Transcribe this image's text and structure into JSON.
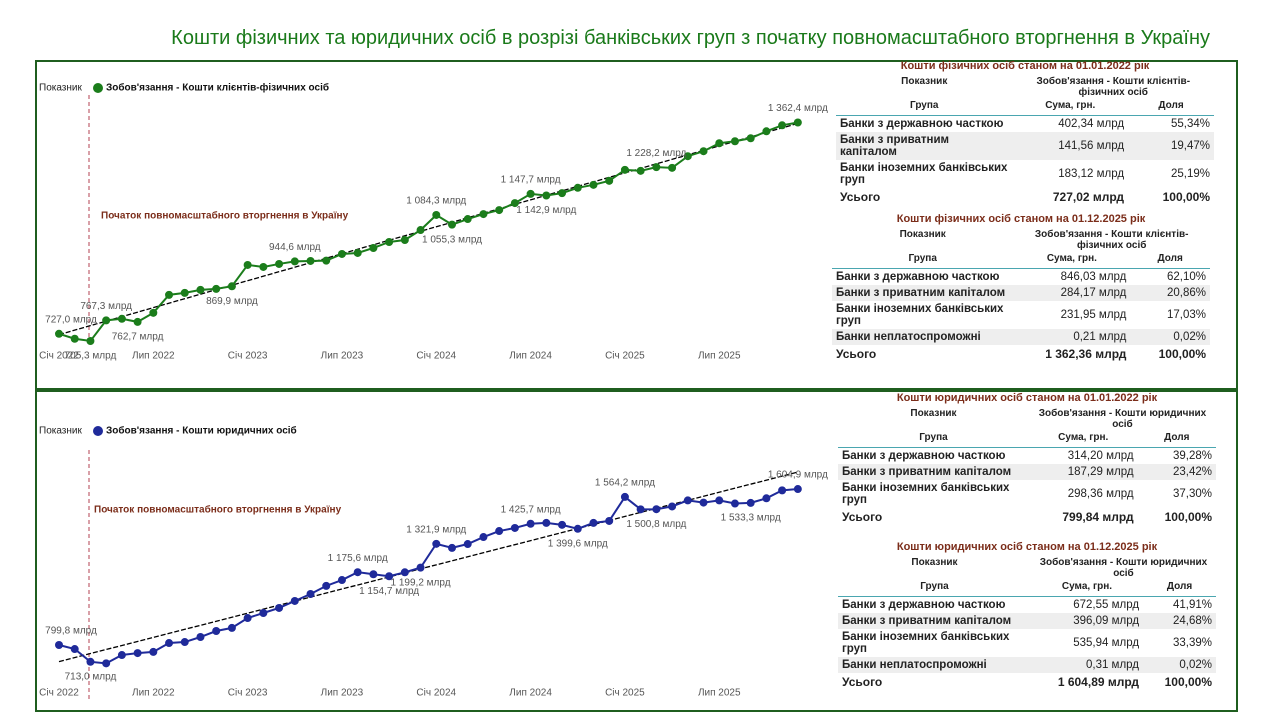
{
  "title": "Кошти фізичних та юридичних осіб в розрізі банківських груп з початку повномасштабного вторгнення в Україну",
  "chart_data": [
    {
      "type": "line",
      "legend_title": "Показник",
      "annotation": "Початок повномасштабного вторгнення в Україну",
      "categories": [
        "Січ 2022",
        null,
        null,
        null,
        null,
        null,
        "Лип 2022",
        null,
        null,
        null,
        null,
        null,
        "Січ 2023",
        null,
        null,
        null,
        null,
        null,
        "Лип 2023",
        null,
        null,
        null,
        null,
        null,
        "Січ 2024",
        null,
        null,
        null,
        null,
        null,
        "Лип 2024",
        null,
        null,
        null,
        null,
        null,
        "Січ 2025",
        null,
        null,
        null,
        null,
        null,
        "Лип 2025",
        null,
        null,
        null,
        null,
        null
      ],
      "ylim": [
        600,
        1400
      ],
      "series": [
        {
          "name": "Зобов'язання - Кошти клієнтів-фізичних осіб",
          "color": "#1b7d1b",
          "values": [
            727.0,
            712,
            705.3,
            767.3,
            772,
            762.7,
            790,
            844,
            850,
            859,
            862,
            869.9,
            934,
            928,
            937,
            944.6,
            946,
            947,
            967,
            970,
            985,
            1003,
            1009,
            1039,
            1084.3,
            1055.3,
            1072,
            1087,
            1099,
            1120,
            1147.7,
            1142.9,
            1150,
            1166,
            1175,
            1187,
            1220,
            1217,
            1228.2,
            1226,
            1261,
            1276,
            1300,
            1306,
            1315,
            1336,
            1354,
            1362.4
          ],
          "value_labels": [
            "727,0 млрд",
            null,
            "705,3 млрд",
            "767,3 млрд",
            null,
            "762,7 млрд",
            null,
            null,
            null,
            null,
            null,
            "869,9 млрд",
            null,
            null,
            null,
            "944,6 млрд",
            null,
            null,
            null,
            null,
            null,
            null,
            null,
            null,
            "1 084,3 млрд",
            "1 055,3 млрд",
            null,
            null,
            null,
            null,
            "1 147,7 млрд",
            "1 142,9 млрд",
            null,
            null,
            null,
            null,
            null,
            null,
            "1 228,2 млрд",
            null,
            null,
            null,
            null,
            null,
            null,
            null,
            null,
            "1 362,4 млрд"
          ]
        }
      ]
    },
    {
      "type": "line",
      "legend_title": "Показник",
      "annotation": "Початок повномасштабного вторгнення в Україну",
      "categories": [
        "Січ 2022",
        null,
        null,
        null,
        null,
        null,
        "Лип 2022",
        null,
        null,
        null,
        null,
        null,
        "Січ 2023",
        null,
        null,
        null,
        null,
        null,
        "Лип 2023",
        null,
        null,
        null,
        null,
        null,
        "Січ 2024",
        null,
        null,
        null,
        null,
        null,
        "Лип 2024",
        null,
        null,
        null,
        null,
        null,
        "Січ 2025",
        null,
        null,
        null,
        null,
        null,
        "Лип 2025",
        null,
        null,
        null,
        null,
        null
      ],
      "ylim": [
        600,
        1700
      ],
      "series": [
        {
          "name": "Зобов'язання - Кошти юридичних осіб",
          "color": "#1f2a9a",
          "values": [
            799.8,
            779,
            713.0,
            705,
            748,
            758,
            764,
            810,
            815,
            841,
            872,
            888,
            939,
            965,
            991,
            1027,
            1063,
            1105,
            1135,
            1175.6,
            1165,
            1154.7,
            1175,
            1199.2,
            1321.9,
            1301,
            1321,
            1357,
            1388,
            1404,
            1425.7,
            1430,
            1420,
            1399.6,
            1430,
            1440,
            1564.2,
            1500,
            1500.8,
            1515,
            1546,
            1535,
            1546,
            1530,
            1533.3,
            1557,
            1598,
            1604.9
          ],
          "value_labels": [
            "799,8 млрд",
            null,
            "713,0 млрд",
            null,
            null,
            null,
            null,
            null,
            null,
            null,
            null,
            null,
            null,
            null,
            null,
            null,
            null,
            null,
            null,
            "1 175,6 млрд",
            null,
            "1 154,7 млрд",
            null,
            "1 199,2 млрд",
            "1 321,9 млрд",
            null,
            null,
            null,
            null,
            null,
            "1 425,7 млрд",
            null,
            null,
            "1 399,6 млрд",
            null,
            null,
            "1 564,2 млрд",
            null,
            "1 500,8 млрд",
            null,
            null,
            null,
            null,
            null,
            "1 533,3 млрд",
            null,
            null,
            "1 604,9 млрд"
          ]
        }
      ]
    }
  ],
  "tables": [
    {
      "title": "Кошти фізичних осіб станом на 01.01.2022 рік",
      "headers": [
        [
          "Показник",
          "Зобов'язання - Кошти клієнтів-фізичних осіб"
        ],
        [
          "Група",
          "Сума, грн.",
          "Доля"
        ]
      ],
      "rows": [
        [
          "Банки з державною часткою",
          "402,34 млрд",
          "55,34%"
        ],
        [
          "Банки з приватним капіталом",
          "141,56 млрд",
          "19,47%"
        ],
        [
          "Банки іноземних банківських груп",
          "183,12 млрд",
          "25,19%"
        ]
      ],
      "total": [
        "Усього",
        "727,02 млрд",
        "100,00%"
      ]
    },
    {
      "title": "Кошти фізичних осіб станом на 01.12.2025 рік",
      "headers": [
        [
          "Показник",
          "Зобов'язання - Кошти клієнтів-фізичних осіб"
        ],
        [
          "Група",
          "Сума, грн.",
          "Доля"
        ]
      ],
      "rows": [
        [
          "Банки з державною часткою",
          "846,03 млрд",
          "62,10%"
        ],
        [
          "Банки з приватним капіталом",
          "284,17 млрд",
          "20,86%"
        ],
        [
          "Банки іноземних банківських груп",
          "231,95 млрд",
          "17,03%"
        ],
        [
          "Банки неплатоспроможні",
          "0,21 млрд",
          "0,02%"
        ]
      ],
      "total": [
        "Усього",
        "1 362,36 млрд",
        "100,00%"
      ]
    },
    {
      "title": "Кошти юридичних осіб станом на 01.01.2022 рік",
      "headers": [
        [
          "Показник",
          "Зобов'язання - Кошти юридичних осіб"
        ],
        [
          "Група",
          "Сума, грн.",
          "Доля"
        ]
      ],
      "rows": [
        [
          "Банки з державною часткою",
          "314,20 млрд",
          "39,28%"
        ],
        [
          "Банки з приватним капіталом",
          "187,29 млрд",
          "23,42%"
        ],
        [
          "Банки іноземних банківських груп",
          "298,36 млрд",
          "37,30%"
        ]
      ],
      "total": [
        "Усього",
        "799,84 млрд",
        "100,00%"
      ]
    },
    {
      "title": "Кошти юридичних осіб станом на 01.12.2025 рік",
      "headers": [
        [
          "Показник",
          "Зобов'язання - Кошти юридичних осіб"
        ],
        [
          "Група",
          "Сума, грн.",
          "Доля"
        ]
      ],
      "rows": [
        [
          "Банки з державною часткою",
          "672,55 млрд",
          "41,91%"
        ],
        [
          "Банки з приватним капіталом",
          "396,09 млрд",
          "24,68%"
        ],
        [
          "Банки іноземних банківських груп",
          "535,94 млрд",
          "33,39%"
        ],
        [
          "Банки неплатоспроможні",
          "0,31 млрд",
          "0,02%"
        ]
      ],
      "total": [
        "Усього",
        "1 604,89 млрд",
        "100,00%"
      ]
    }
  ]
}
